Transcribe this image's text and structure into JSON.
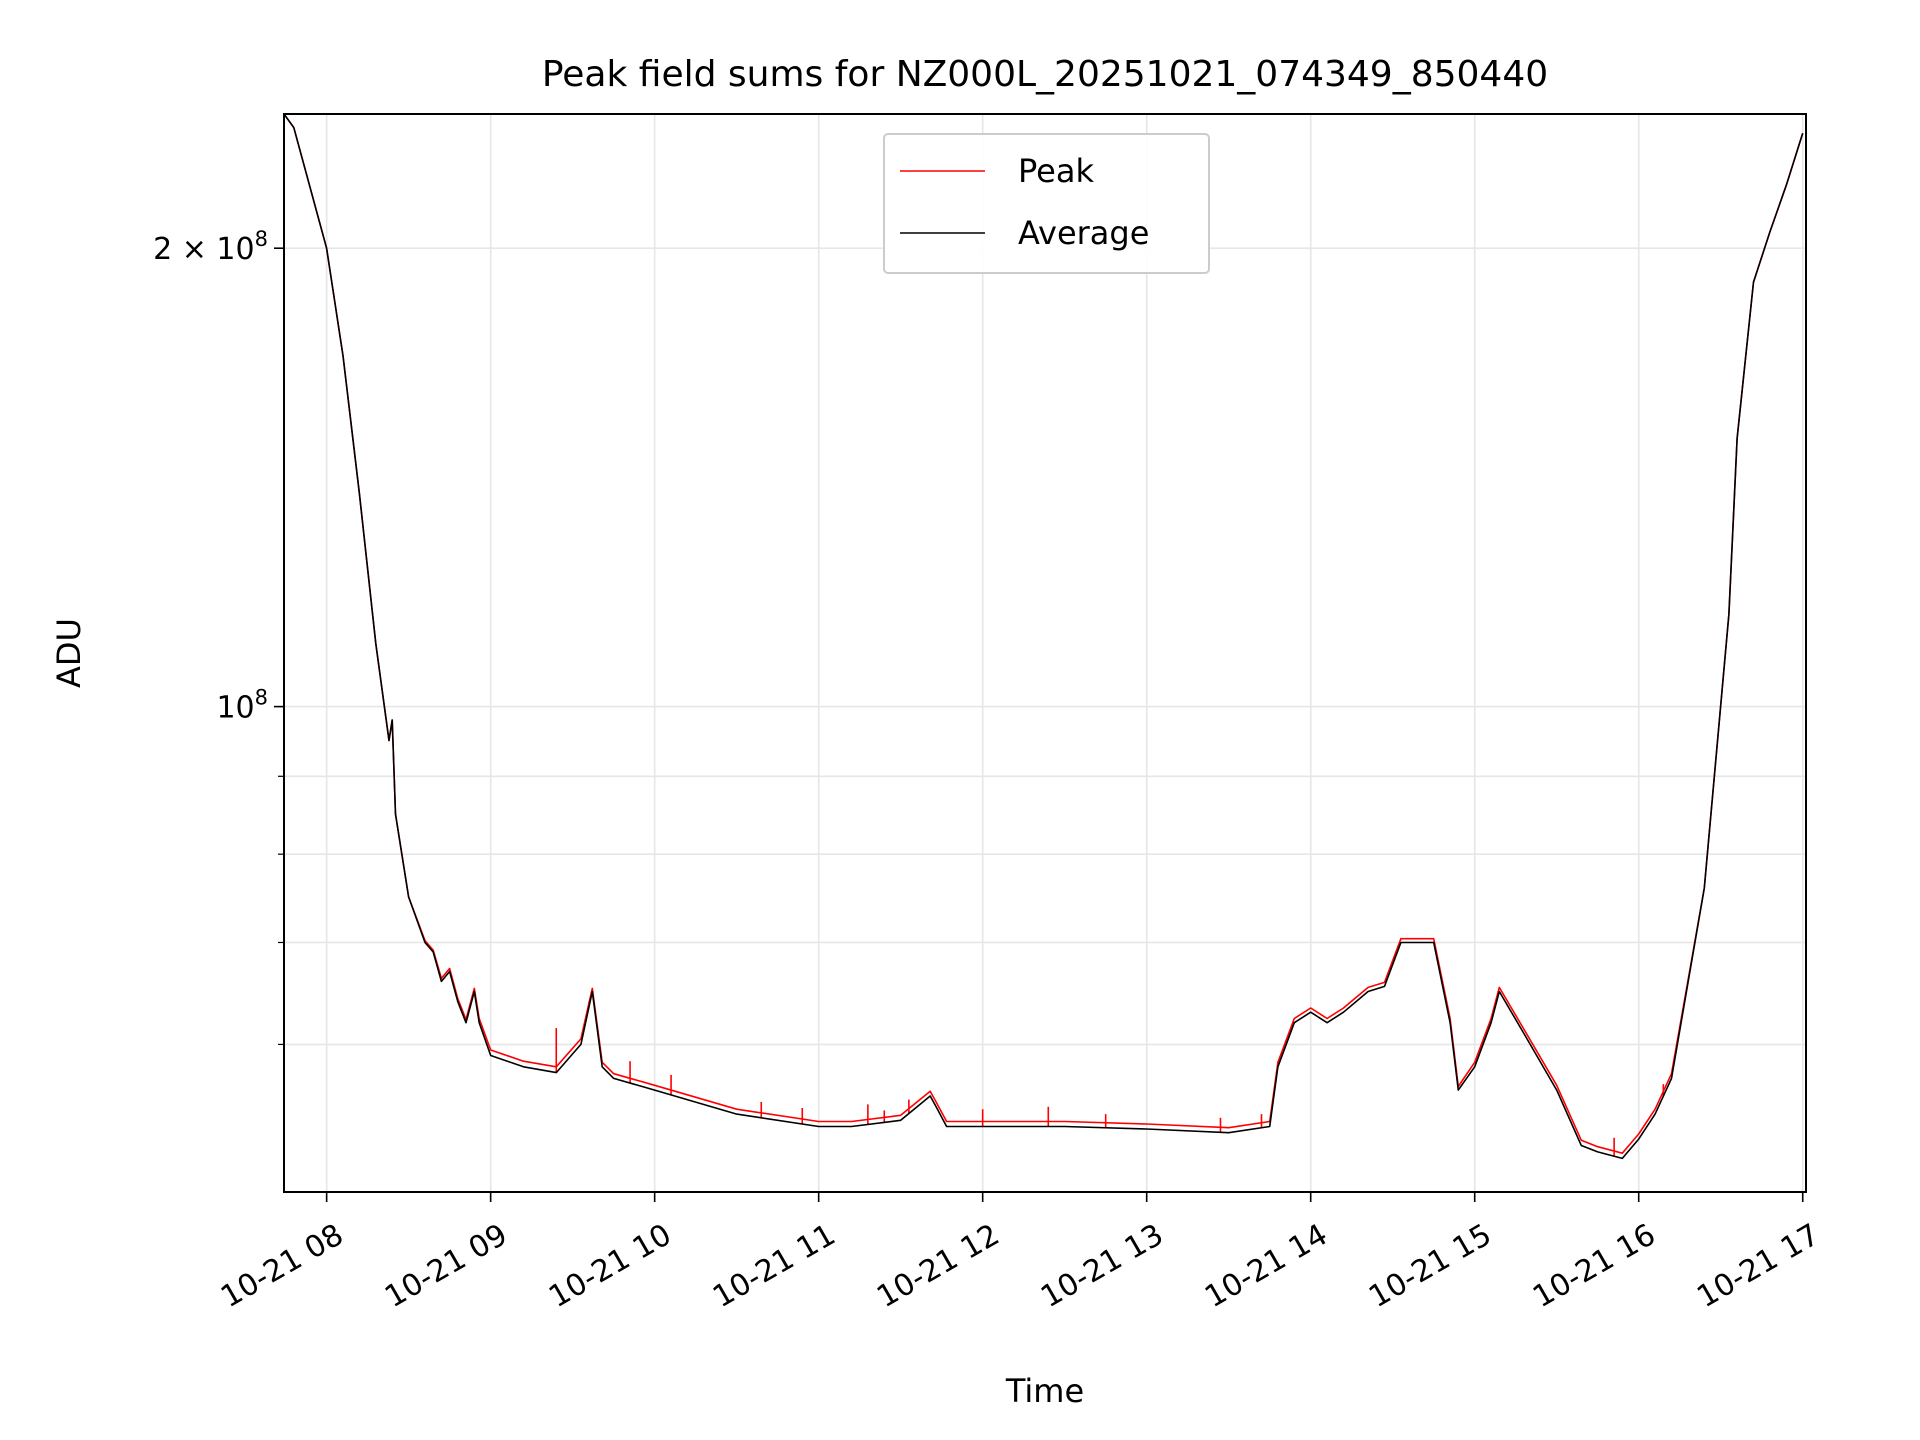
{
  "chart_data": {
    "type": "line",
    "title": "Peak field sums for NZ000L_20251021_074349_850440",
    "xlabel": "Time",
    "ylabel": "ADU",
    "yscale": "log",
    "xlim_hours": [
      7.74,
      17.02
    ],
    "ylim": [
      48000000,
      245000000
    ],
    "grid": true,
    "legend_position": "upper center",
    "x_ticks": [
      {
        "hour": 8,
        "label": "10-21 08"
      },
      {
        "hour": 9,
        "label": "10-21 09"
      },
      {
        "hour": 10,
        "label": "10-21 10"
      },
      {
        "hour": 11,
        "label": "10-21 11"
      },
      {
        "hour": 12,
        "label": "10-21 12"
      },
      {
        "hour": 13,
        "label": "10-21 13"
      },
      {
        "hour": 14,
        "label": "10-21 14"
      },
      {
        "hour": 15,
        "label": "10-21 15"
      },
      {
        "hour": 16,
        "label": "10-21 16"
      },
      {
        "hour": 17,
        "label": "10-21 17"
      }
    ],
    "y_major_ticks": [
      {
        "value": 100000000,
        "base": "10",
        "exp": "8",
        "mantissa": ""
      },
      {
        "value": 200000000,
        "base": "10",
        "exp": "8",
        "mantissa": "2 × "
      }
    ],
    "y_minor_ticks": [
      60000000,
      70000000,
      80000000,
      90000000
    ],
    "series": [
      {
        "name": "Average",
        "color": "#000000",
        "x": [
          7.74,
          7.8,
          8.0,
          8.1,
          8.2,
          8.3,
          8.38,
          8.4,
          8.42,
          8.5,
          8.6,
          8.65,
          8.7,
          8.75,
          8.8,
          8.85,
          8.9,
          8.93,
          9.0,
          9.2,
          9.4,
          9.55,
          9.62,
          9.68,
          9.75,
          10.0,
          10.5,
          11.0,
          11.2,
          11.5,
          11.68,
          11.72,
          11.78,
          12.0,
          12.5,
          13.0,
          13.5,
          13.75,
          13.8,
          13.9,
          14.0,
          14.1,
          14.2,
          14.35,
          14.45,
          14.55,
          14.75,
          14.85,
          14.9,
          15.0,
          15.1,
          15.15,
          15.3,
          15.5,
          15.65,
          15.75,
          15.9,
          16.0,
          16.1,
          16.2,
          16.4,
          16.55,
          16.6,
          16.7,
          16.8,
          16.9,
          17.0
        ],
        "values": [
          245000000,
          240000000,
          200000000,
          170000000,
          138000000,
          110000000,
          95000000,
          98000000,
          85000000,
          75000000,
          70000000,
          69000000,
          66000000,
          67000000,
          64000000,
          62000000,
          65000000,
          62000000,
          59000000,
          58000000,
          57500000,
          60000000,
          65000000,
          58000000,
          57000000,
          56000000,
          54000000,
          53000000,
          53000000,
          53500000,
          55500000,
          54500000,
          53000000,
          53000000,
          53000000,
          52800000,
          52500000,
          53000000,
          58000000,
          62000000,
          63000000,
          62000000,
          63000000,
          65000000,
          65500000,
          70000000,
          70000000,
          62000000,
          56000000,
          58000000,
          62000000,
          65000000,
          61000000,
          56000000,
          51500000,
          51000000,
          50500000,
          52000000,
          54000000,
          57000000,
          76000000,
          115000000,
          150000000,
          190000000,
          205000000,
          220000000,
          238000000
        ]
      },
      {
        "name": "Peak",
        "color": "#ff0000",
        "x": [
          7.74,
          7.8,
          8.0,
          8.1,
          8.2,
          8.3,
          8.38,
          8.4,
          8.42,
          8.5,
          8.6,
          8.65,
          8.7,
          8.75,
          8.8,
          8.85,
          8.9,
          8.93,
          9.0,
          9.2,
          9.4,
          9.55,
          9.62,
          9.68,
          9.75,
          10.0,
          10.5,
          11.0,
          11.2,
          11.5,
          11.68,
          11.72,
          11.78,
          12.0,
          12.5,
          13.0,
          13.5,
          13.75,
          13.8,
          13.9,
          14.0,
          14.1,
          14.2,
          14.35,
          14.45,
          14.55,
          14.75,
          14.85,
          14.9,
          15.0,
          15.1,
          15.15,
          15.3,
          15.5,
          15.65,
          15.75,
          15.9,
          16.0,
          16.1,
          16.2,
          16.4,
          16.55,
          16.6,
          16.7,
          16.8,
          16.9,
          17.0
        ],
        "values": [
          245000000,
          240000000,
          200000000,
          170000000,
          138000000,
          110000000,
          95000000,
          98000000,
          85000000,
          75000000,
          70200000,
          69200000,
          66300000,
          67300000,
          64300000,
          62300000,
          65300000,
          62400000,
          59500000,
          58500000,
          58000000,
          60500000,
          65300000,
          58400000,
          57400000,
          56400000,
          54400000,
          53400000,
          53400000,
          53900000,
          55900000,
          54900000,
          53400000,
          53400000,
          53400000,
          53200000,
          52900000,
          53400000,
          58400000,
          62400000,
          63400000,
          62400000,
          63400000,
          65400000,
          65900000,
          70400000,
          70400000,
          62400000,
          56300000,
          58400000,
          62400000,
          65400000,
          61400000,
          56400000,
          51900000,
          51400000,
          50900000,
          52400000,
          54400000,
          57400000,
          76000000,
          115000000,
          150000000,
          190000000,
          205000000,
          220000000,
          238000000
        ]
      }
    ],
    "peak_spikes": [
      {
        "hour": 9.4,
        "value": 61500000
      },
      {
        "hour": 9.6,
        "value": 64000000
      },
      {
        "hour": 9.85,
        "value": 58500000
      },
      {
        "hour": 10.1,
        "value": 57300000
      },
      {
        "hour": 10.65,
        "value": 55000000
      },
      {
        "hour": 10.9,
        "value": 54500000
      },
      {
        "hour": 11.3,
        "value": 54800000
      },
      {
        "hour": 11.4,
        "value": 54300000
      },
      {
        "hour": 11.55,
        "value": 55200000
      },
      {
        "hour": 12.0,
        "value": 54400000
      },
      {
        "hour": 12.4,
        "value": 54600000
      },
      {
        "hour": 12.75,
        "value": 54000000
      },
      {
        "hour": 13.45,
        "value": 53700000
      },
      {
        "hour": 13.7,
        "value": 54000000
      },
      {
        "hour": 15.85,
        "value": 52100000
      },
      {
        "hour": 16.15,
        "value": 56500000
      }
    ]
  }
}
